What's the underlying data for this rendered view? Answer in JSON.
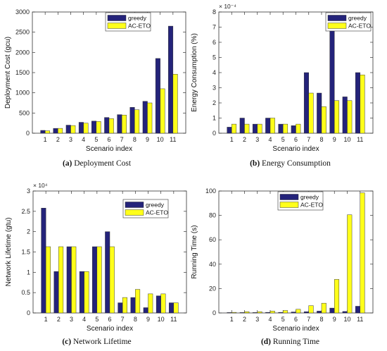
{
  "colors": {
    "greedy": "#24237a",
    "acEto": "#ffff1a",
    "axis": "#333333"
  },
  "chart_data": [
    {
      "id": "a",
      "type": "bar",
      "categories": [
        "1",
        "2",
        "3",
        "4",
        "5",
        "6",
        "7",
        "8",
        "9",
        "10",
        "11"
      ],
      "xlabel": "Scenario index",
      "ylabel": "Deployment Cost (gcu)",
      "ylim": [
        0,
        3000
      ],
      "yticks": [
        0,
        500,
        1000,
        1500,
        2000,
        2500,
        3000
      ],
      "yticklabels": [
        "0",
        "500",
        "1000",
        "1500",
        "2000",
        "2500",
        "3000"
      ],
      "exponent_label": "",
      "grid": false,
      "legend_position": "top-center",
      "series": [
        {
          "name": "greedy",
          "values": [
            70,
            120,
            200,
            270,
            300,
            390,
            460,
            640,
            790,
            1850,
            2650
          ]
        },
        {
          "name": "AC-ETO",
          "values": [
            60,
            120,
            190,
            250,
            290,
            360,
            450,
            580,
            750,
            1100,
            1460
          ]
        }
      ],
      "caption_letter": "(a)",
      "caption_text": "Deployment Cost"
    },
    {
      "id": "b",
      "type": "bar",
      "categories": [
        "1",
        "2",
        "3",
        "4",
        "5",
        "6",
        "7",
        "8",
        "9",
        "10",
        "11"
      ],
      "xlabel": "Scenario index",
      "ylabel": "Energy Consumption (%)",
      "ylim": [
        0,
        8
      ],
      "yticks": [
        0,
        1,
        2,
        3,
        4,
        5,
        6,
        7,
        8
      ],
      "yticklabels": [
        "0",
        "1",
        "2",
        "3",
        "4",
        "5",
        "6",
        "7",
        "8"
      ],
      "exponent_label": "× 10⁻⁴",
      "grid": false,
      "legend_position": "top-right",
      "series": [
        {
          "name": "greedy",
          "values": [
            0.4,
            1.0,
            0.6,
            1.0,
            0.6,
            0.5,
            4.0,
            2.65,
            7.6,
            2.4,
            4.0
          ]
        },
        {
          "name": "AC-ETO",
          "values": [
            0.6,
            0.6,
            0.6,
            1.0,
            0.6,
            0.6,
            2.65,
            1.75,
            2.15,
            2.15,
            3.85
          ]
        }
      ],
      "caption_letter": "(b)",
      "caption_text": "Energy Consumption"
    },
    {
      "id": "c",
      "type": "bar",
      "categories": [
        "1",
        "2",
        "3",
        "4",
        "5",
        "6",
        "7",
        "8",
        "9",
        "10",
        "11"
      ],
      "xlabel": "Scenario index",
      "ylabel": "Network Lifetime (gtu)",
      "ylim": [
        0,
        3
      ],
      "yticks": [
        0,
        0.5,
        1,
        1.5,
        2,
        2.5,
        3
      ],
      "yticklabels": [
        "0",
        "0.5",
        "1",
        "1.5",
        "2",
        "2.5",
        "3"
      ],
      "exponent_label": "× 10⁴",
      "grid": false,
      "legend_position": "top-right",
      "series": [
        {
          "name": "greedy",
          "values": [
            2.58,
            1.02,
            1.63,
            1.02,
            1.63,
            2.0,
            0.25,
            0.38,
            0.13,
            0.42,
            0.25
          ]
        },
        {
          "name": "AC-ETO",
          "values": [
            1.63,
            1.63,
            1.63,
            1.02,
            1.63,
            1.63,
            0.38,
            0.58,
            0.47,
            0.47,
            0.25
          ]
        }
      ],
      "caption_letter": "(c)",
      "caption_text": "Network Lifetime"
    },
    {
      "id": "d",
      "type": "bar",
      "categories": [
        "1",
        "2",
        "3",
        "4",
        "5",
        "6",
        "7",
        "8",
        "9",
        "10",
        "11"
      ],
      "xlabel": "Scenario index",
      "ylabel": "Running Time (s)",
      "ylim": [
        0,
        100
      ],
      "yticks": [
        0,
        20,
        40,
        60,
        80,
        100
      ],
      "yticklabels": [
        "0",
        "20",
        "40",
        "60",
        "80",
        "100"
      ],
      "exponent_label": "",
      "grid": false,
      "legend_position": "top-center",
      "series": [
        {
          "name": "greedy",
          "values": [
            0.3,
            0.3,
            0.3,
            0.5,
            0.5,
            0.8,
            1.0,
            1.5,
            4.0,
            1.2,
            5.5
          ]
        },
        {
          "name": "AC-ETO",
          "values": [
            0.5,
            1.0,
            1.0,
            1.5,
            2.0,
            3.0,
            6.0,
            8.0,
            27.5,
            80.5,
            98.5
          ]
        }
      ],
      "caption_letter": "(d)",
      "caption_text": "Running Time"
    }
  ]
}
